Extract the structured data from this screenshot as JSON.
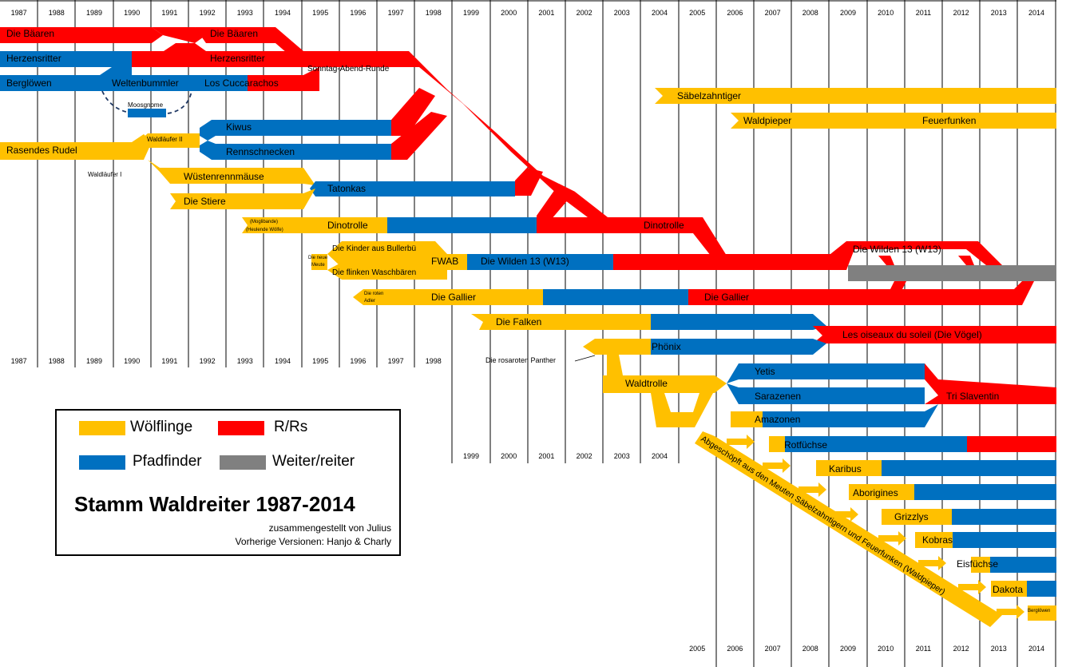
{
  "years_top": [
    "1987",
    "1988",
    "1989",
    "1990",
    "1991",
    "1992",
    "1993",
    "1994",
    "1995",
    "1996",
    "1997",
    "1998",
    "1999",
    "2000",
    "2001",
    "2002",
    "2003",
    "2004",
    "2005",
    "2006",
    "2007",
    "2008",
    "2009",
    "2010",
    "2011",
    "2012",
    "2013",
    "2014"
  ],
  "years_mid_left": [
    "1987",
    "1988",
    "1989",
    "1990",
    "1991",
    "1992",
    "1993",
    "1994",
    "1995",
    "1996",
    "1997",
    "1998"
  ],
  "years_mid_right": [
    "1999",
    "2000",
    "2001",
    "2002",
    "2003",
    "2004"
  ],
  "years_bottom": [
    "2005",
    "2006",
    "2007",
    "2008",
    "2009",
    "2010",
    "2011",
    "2012",
    "2013",
    "2014"
  ],
  "colors": {
    "woelflinge": "#FFC000",
    "rrs": "#FF0000",
    "pfadfinder": "#0070C0",
    "weiter": "#808080",
    "grid": "#000000"
  },
  "groups": {
    "baeren1": "Die Bäaren",
    "baeren2": "Die Bäaren",
    "herzensritter1": "Herzensritter",
    "herzensritter2": "Herzensritter",
    "sonntag": "Sonntag-Abend-Runde",
    "bergloewen": "Berglöwen",
    "weltenbummler": "Weltenbummler",
    "cuccarachos": "Los Cuccarachos",
    "moosgnome": "Moosgnome",
    "saebel": "Säbelzahntiger",
    "waldpieper": "Waldpieper",
    "feuerfunken": "Feuerfunken",
    "kiwus": "Kiwus",
    "rennschnecken": "Rennschnecken",
    "waldlaeufer2": "Waldläufer II",
    "rasendes": "Rasendes Rudel",
    "waldlaeufer1": "Waldläufer I",
    "wuestenrenn": "Wüstenrennmäuse",
    "tatonkas": "Tatonkas",
    "stiere": "Die Stiere",
    "mogli": "(Moglibande)",
    "heulende": "(Heulende Wölfe)",
    "dinotrolle1": "Dinotrolle",
    "dinotrolle2": "Dinotrolle",
    "kinder": "Die Kinder aus Bullerbü",
    "neue_meute1": "Die neue",
    "neue_meute2": "Meute",
    "fwab": "FWAB",
    "wilden1": "Die Wilden 13 (W13)",
    "wilden2": "Die Wilden 13 (W13)",
    "waschbaeren": "Die flinken Waschbären",
    "roten1": "Die roten",
    "roten2": "Adler",
    "gallier1": "Die Gallier",
    "gallier2": "Die Gallier",
    "falken": "Die Falken",
    "oiseaux": "Les oiseaux du soleil (Die Vögel)",
    "phoenix": "Phönix",
    "rosaroten": "Die rosaroten Panther",
    "waldtrolle": "Waldtrolle",
    "yetis": "Yetis",
    "sarazenen": "Sarazenen",
    "slaventin": "Tri Slaventin",
    "amazonen": "Amazonen",
    "rotfuechse": "Rotfüchse",
    "karibus": "Karibus",
    "aborigines": "Aborigines",
    "grizzlys": "Grizzlys",
    "kobras": "Kobras",
    "eisfuechse": "Eisfüchse",
    "dakota": "Dakota",
    "bergloewen_small": "Berglöwen"
  },
  "diagonal_note": "Abgeschöpft aus den Meuten Säbelzahntigern und Feuerfunken (Waldpieper)",
  "legend": {
    "woelflinge": "Wölflinge",
    "rrs": "R/Rs",
    "pfadfinder": "Pfadfinder",
    "weiter": "Weiter/reiter",
    "title": "Stamm Waldreiter 1987-2014",
    "credit": "zusammengestellt von Julius",
    "previous": "Vorherige Versionen: Hanjo & Charly"
  }
}
